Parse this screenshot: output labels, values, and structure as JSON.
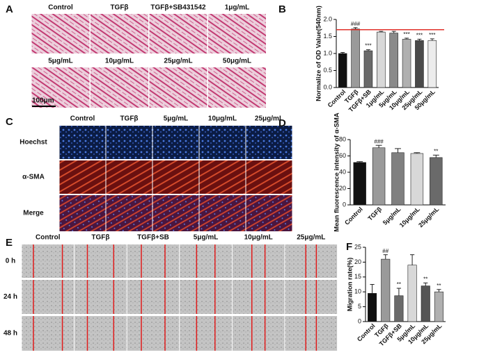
{
  "image_panels": [
    {
      "label": "A",
      "groups": [
        [
          "Control",
          "TGFβ",
          "TGFβ+SB431542",
          "1μg/mL"
        ],
        [
          "5μg/mL",
          "10μg/mL",
          "25μg/mL",
          "50μg/mL"
        ]
      ],
      "scale_bar": "100μm"
    },
    {
      "label": "C",
      "columns": [
        "Control",
        "TGFβ",
        "5μg/mL",
        "10μg/mL",
        "25μg/mL"
      ],
      "rows": [
        "Hoechst",
        "α-SMA",
        "Merge"
      ]
    },
    {
      "label": "E",
      "columns": [
        "Control",
        "TGFβ",
        "TGFβ+SB",
        "5μg/mL",
        "10μg/mL",
        "25μg/mL"
      ],
      "rows": [
        "0 h",
        "24 h",
        "48 h"
      ]
    }
  ],
  "chart_data": [
    {
      "type": "bar",
      "panel_label": "B",
      "ylabel": "Normalize of OD Value(540nm)",
      "categories": [
        "Control",
        "TGFβ",
        "TGFβ+SB",
        "1μg/mL",
        "5μg/mL",
        "10μg/mL",
        "25μg/mL",
        "50μg/mL"
      ],
      "values": [
        1.0,
        1.72,
        1.08,
        1.63,
        1.6,
        1.42,
        1.38,
        1.38
      ],
      "errors": [
        0.03,
        0.04,
        0.03,
        0.02,
        0.05,
        0.03,
        0.04,
        0.05
      ],
      "colors": [
        "#111111",
        "#9a9a9a",
        "#6a6a6a",
        "#d8d8d8",
        "#8a8a8a",
        "#b0b0b0",
        "#4a4a4a",
        "#ececec"
      ],
      "annotations": [
        null,
        "###",
        "***",
        null,
        null,
        "***",
        "***",
        "***"
      ],
      "reference_line": 1.7,
      "reference_color": "#e0302a",
      "ylim": [
        0,
        2.0
      ],
      "yticks": [
        {
          "value": 0,
          "label": "0.0"
        },
        {
          "value": 0.5,
          "label": "0.5"
        },
        {
          "value": 1,
          "label": "1.0"
        },
        {
          "value": 1.5,
          "label": "1.5"
        },
        {
          "value": 2,
          "label": "2.0"
        }
      ]
    },
    {
      "type": "bar",
      "panel_label": "D",
      "ylabel": "Mean fluorescence intensity of α-SMA",
      "categories": [
        "Control",
        "TGFβ",
        "5μg/mL",
        "10μg/mL",
        "25μg/mL"
      ],
      "values": [
        52,
        70,
        64,
        63,
        58
      ],
      "errors": [
        1,
        3,
        5,
        1,
        3
      ],
      "colors": [
        "#111111",
        "#9a9a9a",
        "#808080",
        "#d8d8d8",
        "#6a6a6a"
      ],
      "annotations": [
        null,
        "###",
        null,
        null,
        "**"
      ],
      "ylim": [
        0,
        80
      ],
      "yticks": [
        0,
        20,
        40,
        60,
        80
      ]
    },
    {
      "type": "bar",
      "panel_label": "F",
      "ylabel": "Migration rate(%)",
      "categories": [
        "Control",
        "TGFβ",
        "TGFβ+SB",
        "5μg/mL",
        "10μg/mL",
        "25μg/mL"
      ],
      "values": [
        9.5,
        21,
        8.7,
        19,
        12,
        10
      ],
      "errors": [
        3,
        1.5,
        2.5,
        3.5,
        1,
        0.8
      ],
      "colors": [
        "#111111",
        "#9a9a9a",
        "#6a6a6a",
        "#d8d8d8",
        "#555555",
        "#b0b0b0"
      ],
      "annotations": [
        null,
        "##",
        "**",
        null,
        "**",
        "**"
      ],
      "ylim": [
        0,
        25
      ],
      "yticks": [
        0,
        5,
        10,
        15,
        20,
        25
      ]
    }
  ]
}
